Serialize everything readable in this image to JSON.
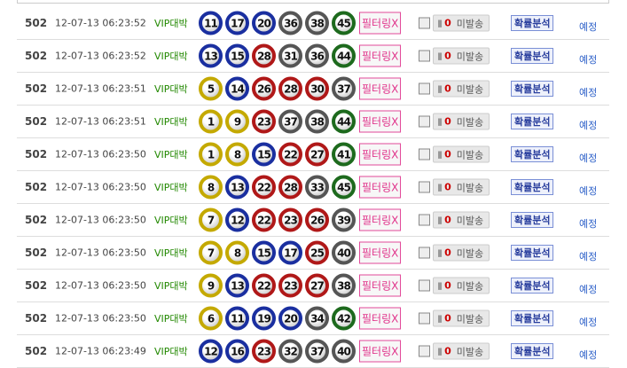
{
  "ball_colors": {
    "1-10": "#c4a900",
    "11-20": "#1a2fa0",
    "21-30": "#b01818",
    "31-40": "#555555",
    "41-45": "#1d6a1d"
  },
  "labels": {
    "filter": "필터링X",
    "send_status": "미발송",
    "send_count": "0",
    "phone_icon": "phone-icon",
    "analysis": "확률분석",
    "plan": "예정"
  },
  "rows": [
    {
      "no": "502",
      "time": "12-07-13 06:23:52",
      "type": "VIP대박",
      "numbers": [
        11,
        17,
        20,
        36,
        38,
        45
      ]
    },
    {
      "no": "502",
      "time": "12-07-13 06:23:52",
      "type": "VIP대박",
      "numbers": [
        13,
        15,
        28,
        31,
        36,
        44
      ]
    },
    {
      "no": "502",
      "time": "12-07-13 06:23:51",
      "type": "VIP대박",
      "numbers": [
        5,
        14,
        26,
        28,
        30,
        37
      ]
    },
    {
      "no": "502",
      "time": "12-07-13 06:23:51",
      "type": "VIP대박",
      "numbers": [
        1,
        9,
        23,
        37,
        38,
        44
      ]
    },
    {
      "no": "502",
      "time": "12-07-13 06:23:50",
      "type": "VIP대박",
      "numbers": [
        1,
        8,
        15,
        22,
        27,
        41
      ]
    },
    {
      "no": "502",
      "time": "12-07-13 06:23:50",
      "type": "VIP대박",
      "numbers": [
        8,
        13,
        22,
        28,
        33,
        45
      ]
    },
    {
      "no": "502",
      "time": "12-07-13 06:23:50",
      "type": "VIP대박",
      "numbers": [
        7,
        12,
        22,
        23,
        26,
        39
      ]
    },
    {
      "no": "502",
      "time": "12-07-13 06:23:50",
      "type": "VIP대박",
      "numbers": [
        7,
        8,
        15,
        17,
        25,
        40
      ]
    },
    {
      "no": "502",
      "time": "12-07-13 06:23:50",
      "type": "VIP대박",
      "numbers": [
        9,
        13,
        22,
        23,
        27,
        38
      ]
    },
    {
      "no": "502",
      "time": "12-07-13 06:23:50",
      "type": "VIP대박",
      "numbers": [
        6,
        11,
        19,
        20,
        34,
        42
      ]
    },
    {
      "no": "502",
      "time": "12-07-13 06:23:49",
      "type": "VIP대박",
      "numbers": [
        12,
        16,
        23,
        32,
        37,
        40
      ]
    }
  ]
}
